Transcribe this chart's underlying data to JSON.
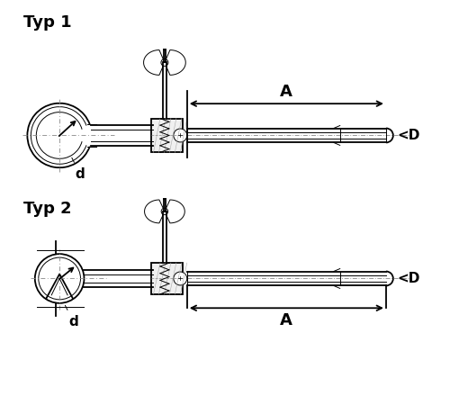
{
  "title1": "Typ 1",
  "title2": "Typ 2",
  "label_d": "d",
  "label_A": "A",
  "label_D": "<D",
  "bg_color": "#ffffff",
  "line_color": "#000000",
  "font_size_title": 13,
  "font_size_label": 11,
  "font_size_A": 13,
  "font_size_D": 11
}
